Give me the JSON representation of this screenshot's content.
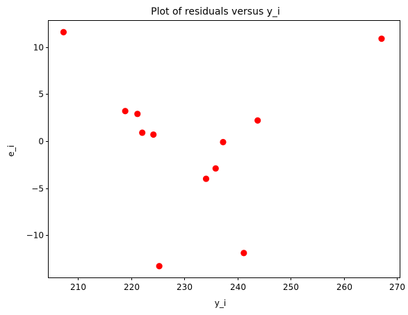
{
  "chart_data": {
    "type": "scatter",
    "title": "Plot of residuals versus y_i",
    "xlabel": "y_i",
    "ylabel": "e_i",
    "xlim": [
      204.5,
      270.5
    ],
    "ylim": [
      -14.5,
      12.8
    ],
    "xticks": [
      210,
      220,
      230,
      240,
      250,
      260,
      270
    ],
    "yticks": [
      -10,
      -5,
      0,
      5,
      10
    ],
    "xtick_labels": [
      "210",
      "220",
      "230",
      "240",
      "250",
      "260",
      "270"
    ],
    "ytick_labels": [
      "−10",
      "−5",
      "0",
      "5",
      "10"
    ],
    "grid": false,
    "marker_color": "#ff0000",
    "series": [
      {
        "x": [
          207.3,
          218.9,
          221.2,
          222.1,
          224.2,
          225.3,
          234.1,
          235.9,
          237.3,
          241.2,
          243.8,
          267.1
        ],
        "y": [
          11.6,
          3.2,
          2.9,
          0.9,
          0.7,
          -13.3,
          -4.0,
          -2.9,
          -0.1,
          -11.9,
          2.2,
          10.9
        ]
      }
    ]
  }
}
